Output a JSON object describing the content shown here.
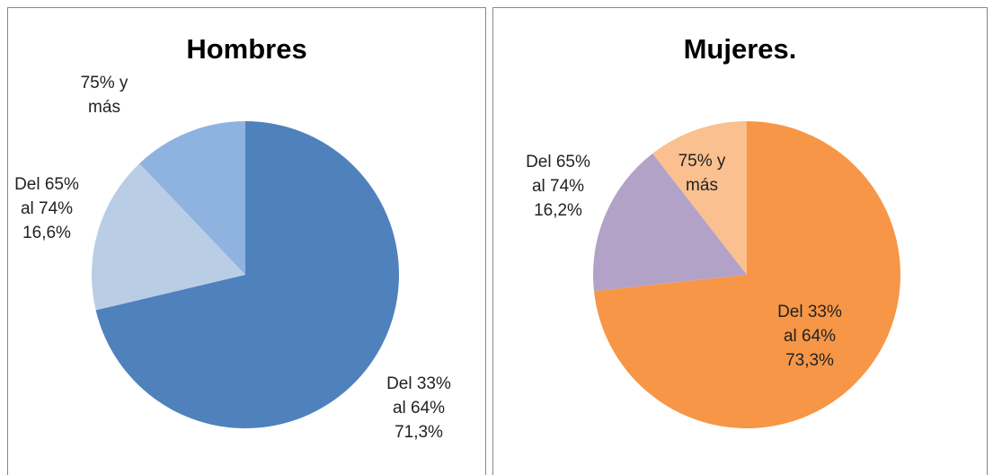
{
  "chart_data": [
    {
      "type": "pie",
      "title": "Hombres",
      "categories": [
        "Del 33% al 64%",
        "Del 65% al 74%",
        "75% y más"
      ],
      "values": [
        71.3,
        16.6,
        12.1
      ],
      "value_labels": [
        "71,3%",
        "16,6%",
        null
      ],
      "colors": [
        "#4f81bd",
        "#b9cde5",
        "#8fb3e0"
      ]
    },
    {
      "type": "pie",
      "title": "Mujeres.",
      "categories": [
        "Del 33% al 64%",
        "Del 65% al 74%",
        "75% y más"
      ],
      "values": [
        73.3,
        16.2,
        10.5
      ],
      "value_labels": [
        "73,3%",
        "16,2%",
        null
      ],
      "colors": [
        "#f79646",
        "#b2a2c7",
        "#fac090"
      ]
    }
  ]
}
